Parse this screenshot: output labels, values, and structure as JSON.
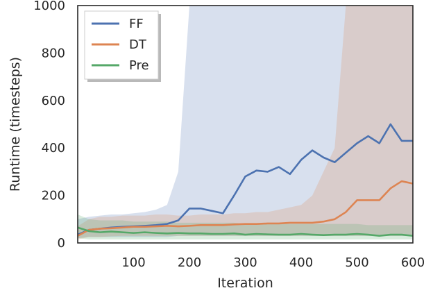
{
  "chart_data": {
    "type": "line",
    "title": "",
    "xlabel": "Iteration",
    "ylabel": "Runtime (timesteps)",
    "xlim": [
      0,
      600
    ],
    "ylim": [
      0,
      1000
    ],
    "xticks": [
      100,
      200,
      300,
      400,
      500,
      600
    ],
    "yticks": [
      0,
      200,
      400,
      600,
      800,
      1000
    ],
    "grid": false,
    "legend_position": "top-left",
    "x": [
      0,
      20,
      40,
      60,
      80,
      100,
      120,
      140,
      160,
      180,
      200,
      220,
      240,
      260,
      280,
      300,
      320,
      340,
      360,
      380,
      400,
      420,
      440,
      460,
      480,
      500,
      520,
      540,
      560,
      580,
      600
    ],
    "series": [
      {
        "name": "FF",
        "color": "#4c72b0",
        "values": [
          35,
          55,
          60,
          65,
          68,
          70,
          72,
          75,
          80,
          95,
          145,
          145,
          135,
          125,
          200,
          280,
          305,
          300,
          320,
          290,
          350,
          390,
          360,
          340,
          380,
          420,
          450,
          420,
          500,
          430,
          430
        ],
        "band_upper": [
          100,
          110,
          115,
          120,
          120,
          125,
          130,
          140,
          160,
          300,
          1000,
          1000,
          1000,
          1000,
          1000,
          1000,
          1000,
          1000,
          1000,
          1000,
          1000,
          1000,
          1000,
          1000,
          1000,
          1000,
          1000,
          1000,
          1000,
          1000,
          1000
        ],
        "band_lower": [
          20,
          25,
          25,
          25,
          25,
          25,
          25,
          25,
          25,
          30,
          30,
          30,
          30,
          30,
          30,
          30,
          30,
          30,
          30,
          30,
          30,
          30,
          30,
          30,
          30,
          30,
          30,
          30,
          30,
          30,
          30
        ]
      },
      {
        "name": "DT",
        "color": "#dd8452",
        "values": [
          30,
          55,
          60,
          62,
          65,
          68,
          68,
          70,
          72,
          70,
          72,
          75,
          75,
          75,
          78,
          80,
          80,
          82,
          82,
          85,
          85,
          85,
          90,
          100,
          130,
          180,
          180,
          180,
          230,
          260,
          250
        ],
        "band_upper": [
          70,
          100,
          110,
          110,
          115,
          115,
          115,
          120,
          120,
          115,
          115,
          120,
          120,
          120,
          125,
          125,
          130,
          130,
          140,
          150,
          160,
          200,
          300,
          400,
          1000,
          1000,
          1000,
          1000,
          1000,
          1000,
          1000
        ],
        "band_lower": [
          15,
          25,
          25,
          28,
          30,
          30,
          30,
          30,
          30,
          30,
          30,
          30,
          30,
          30,
          30,
          30,
          30,
          30,
          30,
          30,
          30,
          30,
          30,
          30,
          30,
          30,
          30,
          30,
          30,
          30,
          30
        ]
      },
      {
        "name": "Pre",
        "color": "#55a868",
        "values": [
          65,
          50,
          45,
          48,
          45,
          42,
          45,
          42,
          40,
          42,
          40,
          40,
          38,
          38,
          40,
          35,
          38,
          36,
          35,
          35,
          38,
          35,
          33,
          35,
          35,
          38,
          35,
          30,
          35,
          35,
          30
        ],
        "band_upper": [
          120,
          100,
          95,
          95,
          95,
          90,
          90,
          90,
          90,
          85,
          85,
          85,
          85,
          85,
          85,
          80,
          80,
          80,
          80,
          80,
          80,
          80,
          80,
          80,
          80,
          80,
          75,
          75,
          75,
          75,
          75
        ],
        "band_lower": [
          20,
          15,
          15,
          15,
          15,
          15,
          15,
          15,
          15,
          15,
          15,
          15,
          15,
          15,
          15,
          15,
          15,
          15,
          15,
          15,
          15,
          15,
          15,
          15,
          15,
          15,
          15,
          15,
          15,
          15,
          15
        ]
      }
    ]
  }
}
